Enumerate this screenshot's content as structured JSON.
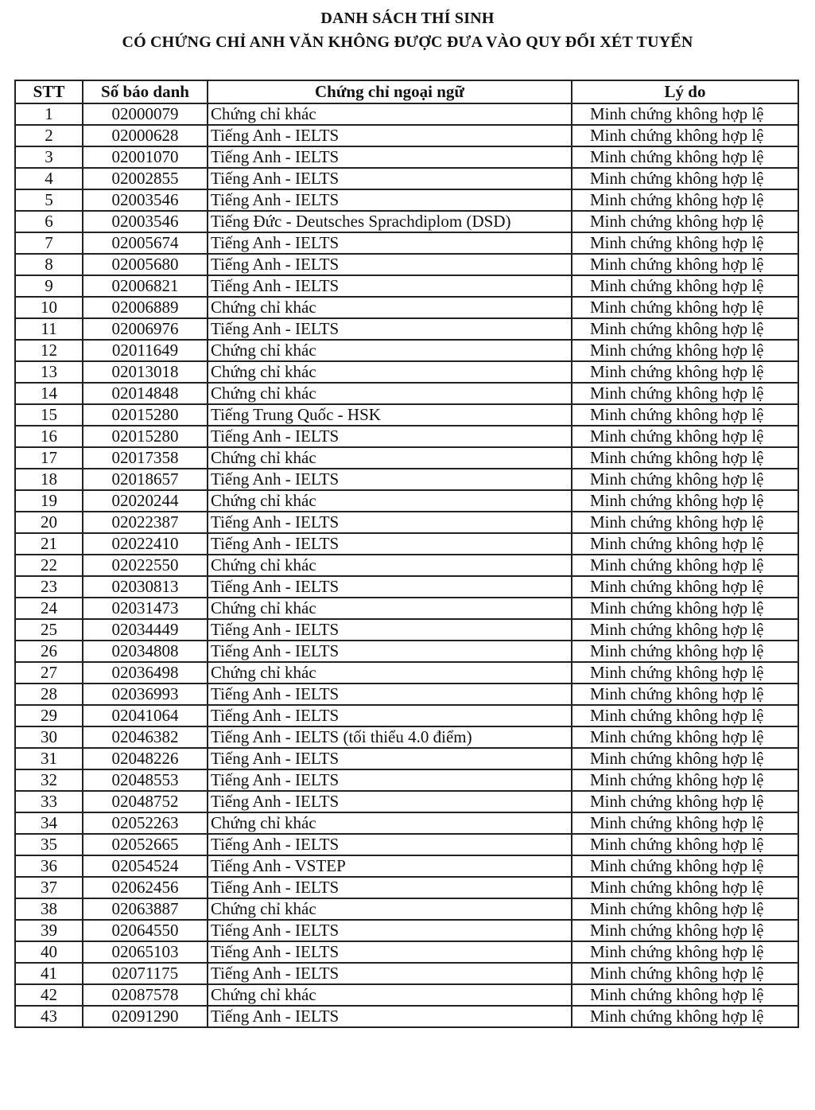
{
  "document": {
    "title_line1": "DANH SÁCH THÍ SINH",
    "title_line2": "CÓ CHỨNG CHỈ ANH VĂN KHÔNG ĐƯỢC ĐƯA VÀO QUY ĐỔI XÉT TUYỂN"
  },
  "table": {
    "headers": [
      "STT",
      "Số báo danh",
      "Chứng chỉ ngoại ngữ",
      "Lý do"
    ],
    "rows": [
      [
        "1",
        "02000079",
        "Chứng chỉ khác",
        "Minh chứng không hợp lệ"
      ],
      [
        "2",
        "02000628",
        "Tiếng Anh - IELTS",
        "Minh chứng không hợp lệ"
      ],
      [
        "3",
        "02001070",
        "Tiếng Anh - IELTS",
        "Minh chứng không hợp lệ"
      ],
      [
        "4",
        "02002855",
        "Tiếng Anh - IELTS",
        "Minh chứng không hợp lệ"
      ],
      [
        "5",
        "02003546",
        "Tiếng Anh - IELTS",
        "Minh chứng không hợp lệ"
      ],
      [
        "6",
        "02003546",
        "Tiếng Đức - Deutsches Sprachdiplom (DSD)",
        "Minh chứng không hợp lệ"
      ],
      [
        "7",
        "02005674",
        "Tiếng Anh - IELTS",
        "Minh chứng không hợp lệ"
      ],
      [
        "8",
        "02005680",
        "Tiếng Anh - IELTS",
        "Minh chứng không hợp lệ"
      ],
      [
        "9",
        "02006821",
        "Tiếng Anh - IELTS",
        "Minh chứng không hợp lệ"
      ],
      [
        "10",
        "02006889",
        "Chứng chỉ khác",
        "Minh chứng không hợp lệ"
      ],
      [
        "11",
        "02006976",
        "Tiếng Anh - IELTS",
        "Minh chứng không hợp lệ"
      ],
      [
        "12",
        "02011649",
        "Chứng chỉ khác",
        "Minh chứng không hợp lệ"
      ],
      [
        "13",
        "02013018",
        "Chứng chỉ khác",
        "Minh chứng không hợp lệ"
      ],
      [
        "14",
        "02014848",
        "Chứng chỉ khác",
        "Minh chứng không hợp lệ"
      ],
      [
        "15",
        "02015280",
        "Tiếng Trung Quốc - HSK",
        "Minh chứng không hợp lệ"
      ],
      [
        "16",
        "02015280",
        "Tiếng Anh - IELTS",
        "Minh chứng không hợp lệ"
      ],
      [
        "17",
        "02017358",
        "Chứng chỉ khác",
        "Minh chứng không hợp lệ"
      ],
      [
        "18",
        "02018657",
        "Tiếng Anh - IELTS",
        "Minh chứng không hợp lệ"
      ],
      [
        "19",
        "02020244",
        "Chứng chỉ khác",
        "Minh chứng không hợp lệ"
      ],
      [
        "20",
        "02022387",
        "Tiếng Anh - IELTS",
        "Minh chứng không hợp lệ"
      ],
      [
        "21",
        "02022410",
        "Tiếng Anh - IELTS",
        "Minh chứng không hợp lệ"
      ],
      [
        "22",
        "02022550",
        "Chứng chỉ khác",
        "Minh chứng không hợp lệ"
      ],
      [
        "23",
        "02030813",
        "Tiếng Anh - IELTS",
        "Minh chứng không hợp lệ"
      ],
      [
        "24",
        "02031473",
        "Chứng chỉ khác",
        "Minh chứng không hợp lệ"
      ],
      [
        "25",
        "02034449",
        "Tiếng Anh - IELTS",
        "Minh chứng không hợp lệ"
      ],
      [
        "26",
        "02034808",
        "Tiếng Anh - IELTS",
        "Minh chứng không hợp lệ"
      ],
      [
        "27",
        "02036498",
        "Chứng chỉ khác",
        "Minh chứng không hợp lệ"
      ],
      [
        "28",
        "02036993",
        "Tiếng Anh - IELTS",
        "Minh chứng không hợp lệ"
      ],
      [
        "29",
        "02041064",
        "Tiếng Anh - IELTS",
        "Minh chứng không hợp lệ"
      ],
      [
        "30",
        "02046382",
        "Tiếng Anh - IELTS (tối thiểu 4.0 điểm)",
        "Minh chứng không hợp lệ"
      ],
      [
        "31",
        "02048226",
        "Tiếng Anh - IELTS",
        "Minh chứng không hợp lệ"
      ],
      [
        "32",
        "02048553",
        "Tiếng Anh - IELTS",
        "Minh chứng không hợp lệ"
      ],
      [
        "33",
        "02048752",
        "Tiếng Anh - IELTS",
        "Minh chứng không hợp lệ"
      ],
      [
        "34",
        "02052263",
        "Chứng chỉ khác",
        "Minh chứng không hợp lệ"
      ],
      [
        "35",
        "02052665",
        "Tiếng Anh - IELTS",
        "Minh chứng không hợp lệ"
      ],
      [
        "36",
        "02054524",
        "Tiếng Anh - VSTEP",
        "Minh chứng không hợp lệ"
      ],
      [
        "37",
        "02062456",
        "Tiếng Anh - IELTS",
        "Minh chứng không hợp lệ"
      ],
      [
        "38",
        "02063887",
        "Chứng chỉ khác",
        "Minh chứng không hợp lệ"
      ],
      [
        "39",
        "02064550",
        "Tiếng Anh - IELTS",
        "Minh chứng không hợp lệ"
      ],
      [
        "40",
        "02065103",
        "Tiếng Anh - IELTS",
        "Minh chứng không hợp lệ"
      ],
      [
        "41",
        "02071175",
        "Tiếng Anh - IELTS",
        "Minh chứng không hợp lệ"
      ],
      [
        "42",
        "02087578",
        "Chứng chỉ khác",
        "Minh chứng không hợp lệ"
      ],
      [
        "43",
        "02091290",
        "Tiếng Anh - IELTS",
        "Minh chứng không hợp lệ"
      ]
    ]
  }
}
